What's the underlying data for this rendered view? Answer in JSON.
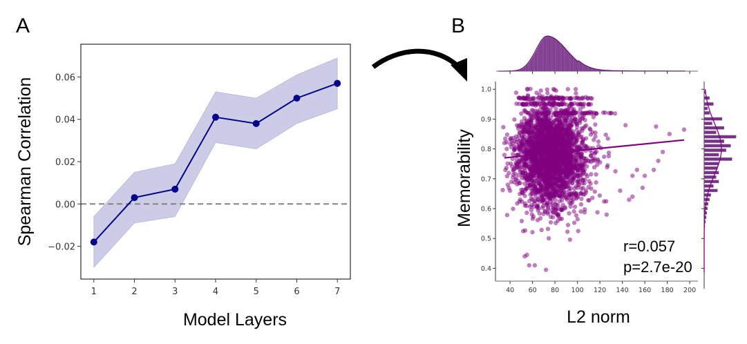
{
  "figure": {
    "panel_labels": [
      "A",
      "B"
    ]
  },
  "chart_data": [
    {
      "panel": "A",
      "type": "line",
      "title": "",
      "xlabel": "Model Layers",
      "ylabel": "Spearman Correlation",
      "x": [
        1,
        2,
        3,
        4,
        5,
        6,
        7
      ],
      "xticks": [
        "1",
        "2",
        "3",
        "4",
        "5",
        "6",
        "7"
      ],
      "yticks": [
        "0.06",
        "0.04",
        "0.02",
        "0.00",
        "−0.02"
      ],
      "ytick_values": [
        0.06,
        0.04,
        0.02,
        0.0,
        -0.02
      ],
      "ylim": [
        -0.0355,
        0.0755
      ],
      "xlim": [
        0.68,
        7.32
      ],
      "series": [
        {
          "name": "Spearman correlation",
          "values": [
            -0.018,
            0.003,
            0.007,
            0.041,
            0.038,
            0.05,
            0.057
          ],
          "ci_lower": [
            -0.03,
            -0.009,
            -0.006,
            0.029,
            0.026,
            0.038,
            0.045
          ],
          "ci_upper": [
            -0.006,
            0.015,
            0.019,
            0.053,
            0.05,
            0.061,
            0.069
          ],
          "color": "#00008b",
          "band_color": "#9a9ad0"
        }
      ],
      "reference_line": {
        "y": 0.0,
        "style": "dashed",
        "color": "#808080"
      },
      "grid": false,
      "legend": "none"
    },
    {
      "panel": "B",
      "type": "scatter",
      "title": "",
      "xlabel": "L2 norm",
      "ylabel": "Memorability",
      "xticks": [
        "40",
        "60",
        "80",
        "100",
        "120",
        "140",
        "160",
        "180",
        "200"
      ],
      "xtick_values": [
        40,
        60,
        80,
        100,
        120,
        140,
        160,
        180,
        200
      ],
      "yticks": [
        "1.0",
        "0.9",
        "0.8",
        "0.7",
        "0.6",
        "0.5",
        "0.4"
      ],
      "ytick_values": [
        1.0,
        0.9,
        0.8,
        0.7,
        0.6,
        0.5,
        0.4
      ],
      "xlim": [
        27,
        203
      ],
      "ylim": [
        0.357,
        1.026
      ],
      "point_color": "#800080",
      "point_alpha": 0.5,
      "distribution": {
        "x_mean": 73,
        "x_sd": 14,
        "x_skew": "right",
        "y_mean": 0.78,
        "y_sd": 0.085,
        "y_bands": [
          1.0,
          0.97,
          0.95,
          0.92
        ]
      },
      "regression_line": {
        "x": [
          35,
          195
        ],
        "y": [
          0.77,
          0.83
        ],
        "color": "#800080"
      },
      "annotations": [
        "r=0.057",
        "p=2.7e-20"
      ],
      "stats": {
        "r": 0.057,
        "p": "2.7e-20"
      },
      "marginal_x": {
        "type": "histogram+kde",
        "peak_x": 73,
        "color": "#6a1b7a"
      },
      "marginal_y": {
        "type": "histogram+kde",
        "bins": [
          {
            "y": 0.99,
            "count": 2
          },
          {
            "y": 0.97,
            "count": 8
          },
          {
            "y": 0.95,
            "count": 14
          },
          {
            "y": 0.935,
            "count": 5
          },
          {
            "y": 0.92,
            "count": 8
          },
          {
            "y": 0.9,
            "count": 27
          },
          {
            "y": 0.885,
            "count": 12
          },
          {
            "y": 0.87,
            "count": 30
          },
          {
            "y": 0.855,
            "count": 18
          },
          {
            "y": 0.84,
            "count": 48
          },
          {
            "y": 0.825,
            "count": 30
          },
          {
            "y": 0.81,
            "count": 40
          },
          {
            "y": 0.795,
            "count": 33
          },
          {
            "y": 0.78,
            "count": 22
          },
          {
            "y": 0.765,
            "count": 42
          },
          {
            "y": 0.75,
            "count": 22
          },
          {
            "y": 0.735,
            "count": 20
          },
          {
            "y": 0.72,
            "count": 22
          },
          {
            "y": 0.705,
            "count": 18
          },
          {
            "y": 0.69,
            "count": 22
          },
          {
            "y": 0.675,
            "count": 14
          },
          {
            "y": 0.66,
            "count": 20
          },
          {
            "y": 0.645,
            "count": 10
          },
          {
            "y": 0.63,
            "count": 8
          },
          {
            "y": 0.615,
            "count": 6
          },
          {
            "y": 0.6,
            "count": 5
          },
          {
            "y": 0.585,
            "count": 4
          },
          {
            "y": 0.57,
            "count": 3
          },
          {
            "y": 0.555,
            "count": 2
          },
          {
            "y": 0.54,
            "count": 1
          }
        ],
        "color": "#6a1b7a"
      },
      "grid": false,
      "legend": "none"
    }
  ]
}
